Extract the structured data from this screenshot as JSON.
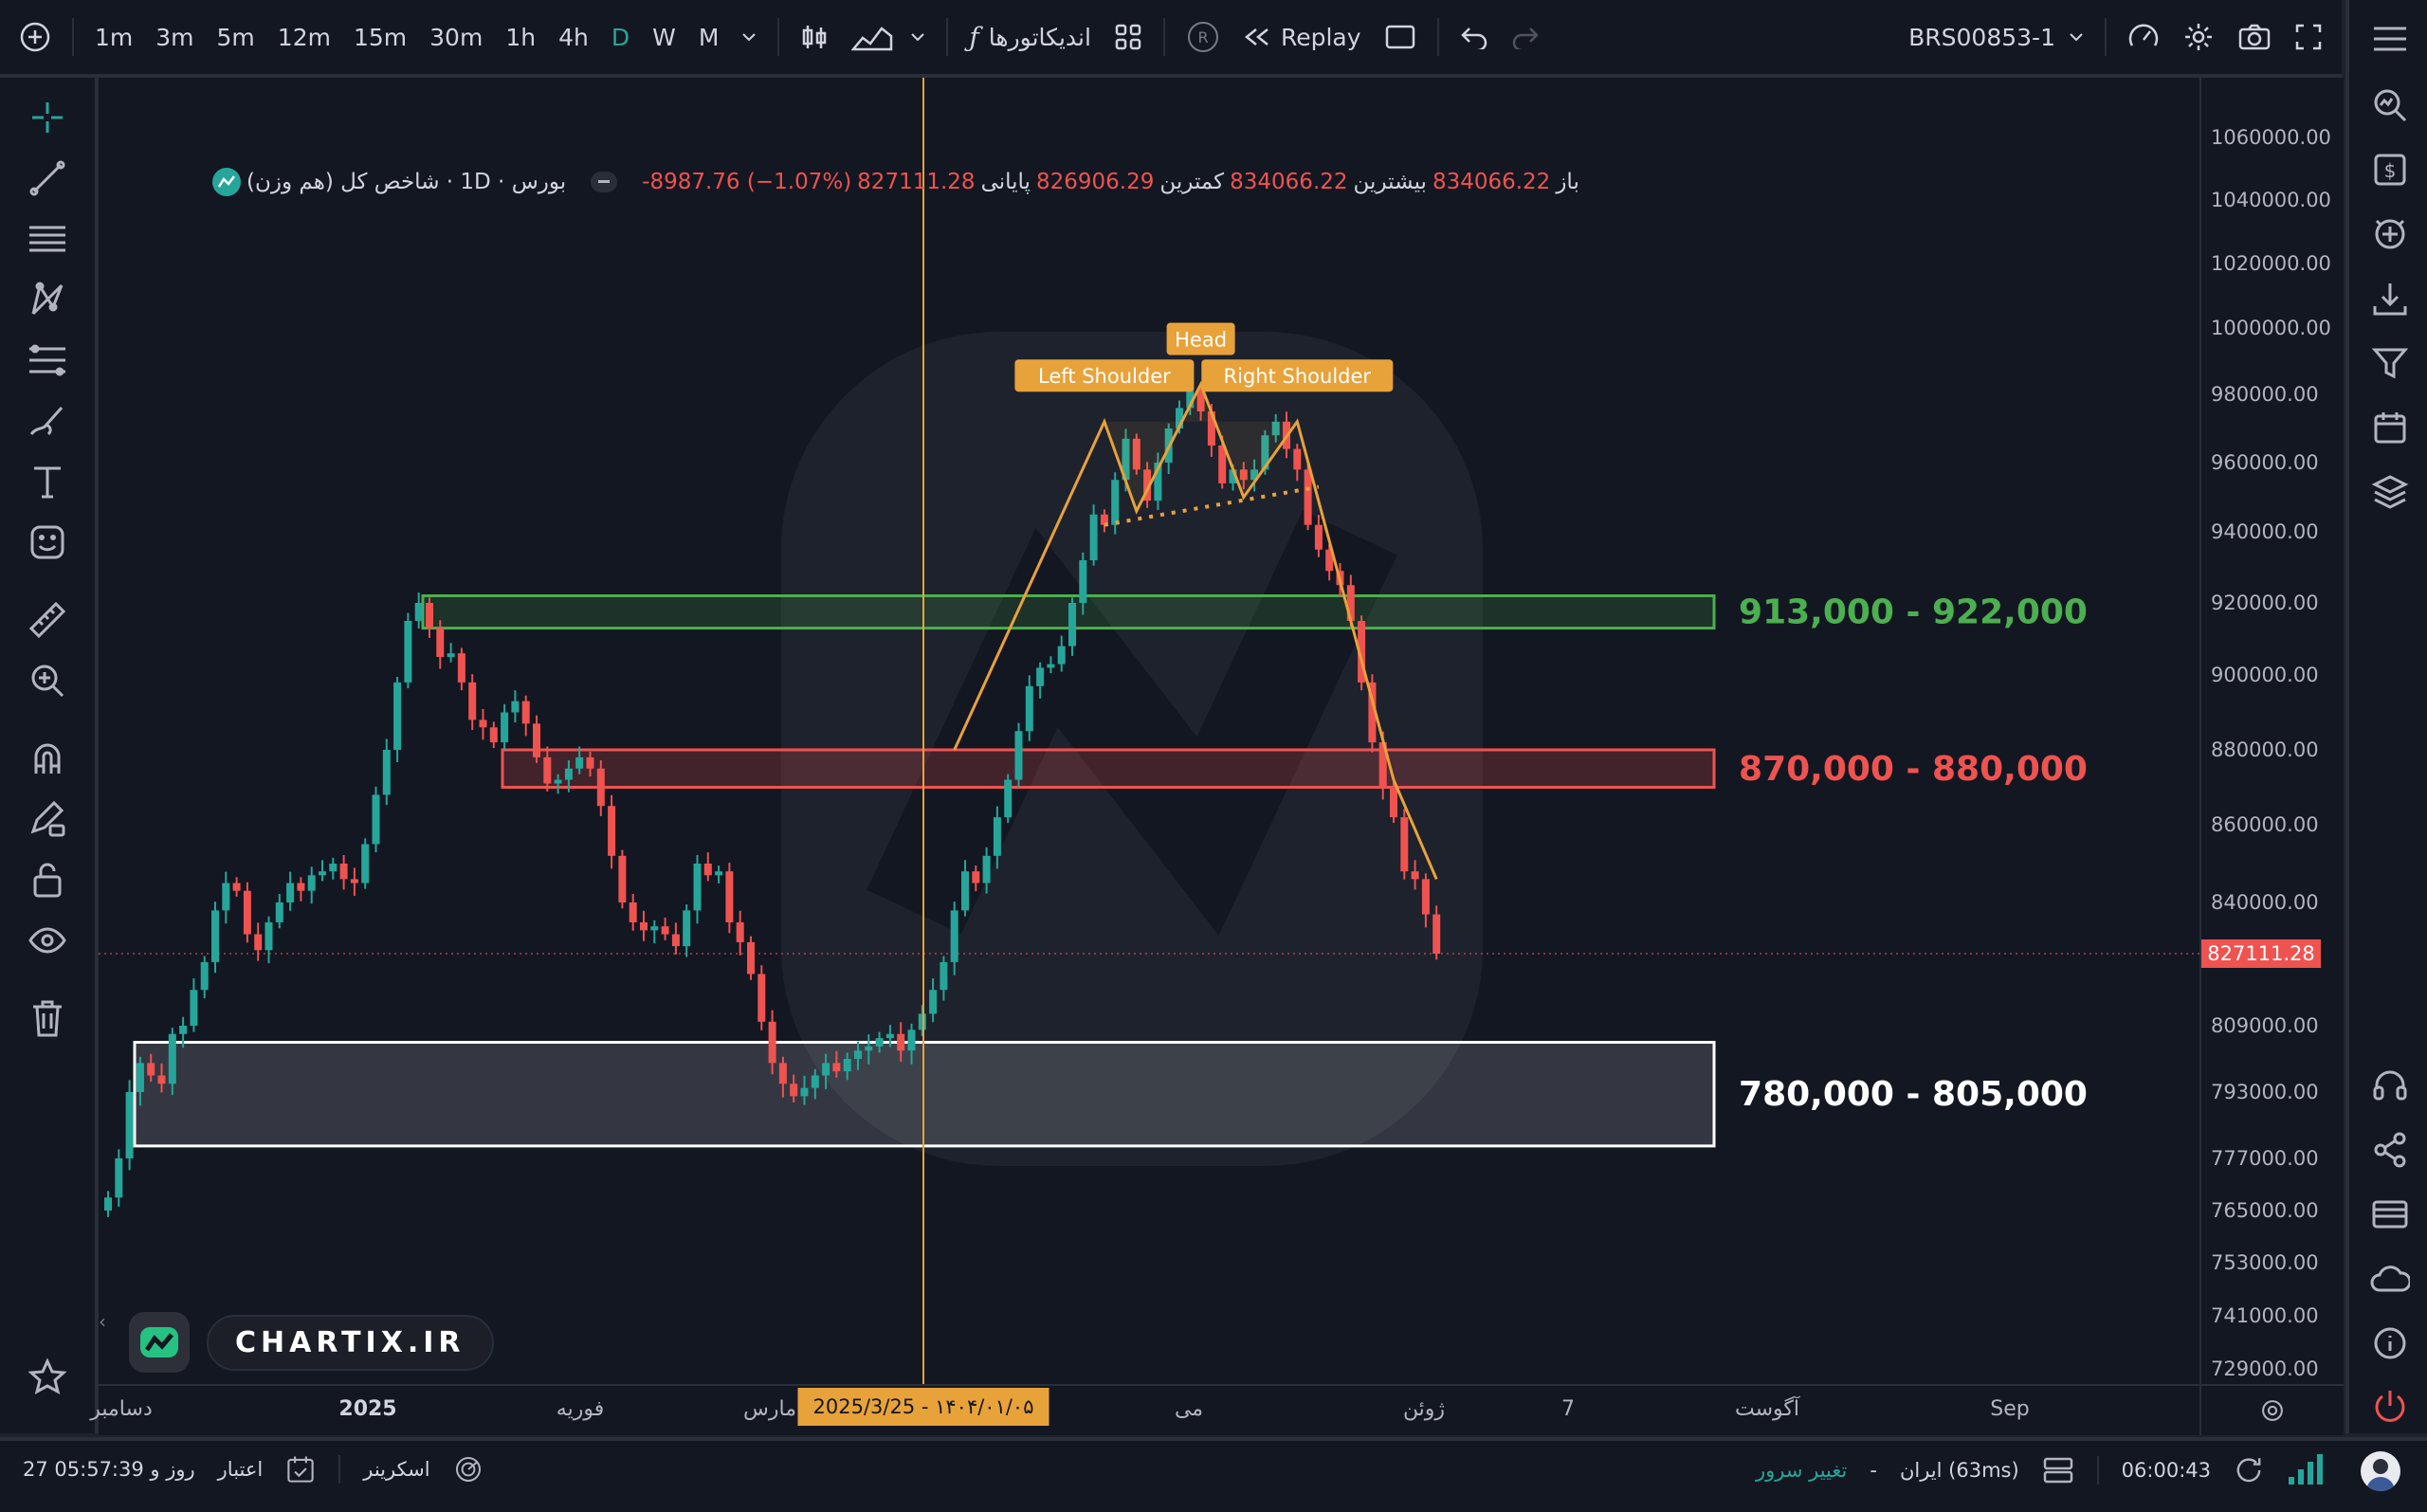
{
  "toolbar": {
    "timeframes": [
      "1m",
      "3m",
      "5m",
      "12m",
      "15m",
      "30m",
      "1h",
      "4h",
      "D",
      "W",
      "M"
    ],
    "active_timeframe": "D",
    "indicators_label": "اندیکاتورها",
    "replay_label": "Replay",
    "symbol": "BRS00853-1"
  },
  "legend": {
    "name": "شاخص کل (هم وزن)",
    "interval": "1D",
    "exchange": "بورس",
    "open_label": "باز",
    "open_value": "834066.22",
    "high_label": "بیشترین",
    "high_value": "834066.22",
    "low_label": "کمترین",
    "low_value": "826906.29",
    "close_label": "پایانی",
    "close_value": "827111.28",
    "change_value": "-8987.76 (−1.07%)"
  },
  "watermark_text": "CHARTIX.IR",
  "crosshair_date": "2025/3/25 - ۱۴۰۴/۰۱/۰۵",
  "last_price_label": "827111.28",
  "status": {
    "credit_label": "اعتبار",
    "credit_value": "27 روز و 05:57:39",
    "screener_label": "اسکرینر",
    "server_change_label": "تغییر سرور",
    "server": "ایران (63ms)",
    "clock": "06:00:43"
  },
  "colors": {
    "up": "#26a69a",
    "down": "#ef5350",
    "pattern": "#e8a23a",
    "support": "#ffffff",
    "resistance": "#ef5350",
    "green_zone": "#4caf50"
  },
  "chart_data": {
    "type": "candlestick",
    "title": "",
    "xlabel": "",
    "ylabel": "",
    "y_ticks": [
      1060000,
      1040000,
      1020000,
      1000000,
      980000,
      960000,
      940000,
      920000,
      900000,
      880000,
      860000,
      840000,
      809000,
      793000,
      777000,
      765000,
      753000,
      741000,
      729000
    ],
    "y_tick_labels": [
      "1060000.00",
      "1040000.00",
      "1020000.00",
      "1000000.00",
      "980000.00",
      "960000.00",
      "940000.00",
      "920000.00",
      "900000.00",
      "880000.00",
      "860000.00",
      "840000.00",
      "809000.00",
      "793000.00",
      "777000.00",
      "765000.00",
      "753000.00",
      "741000.00",
      "729000.00"
    ],
    "x_ticks": [
      {
        "label": "دسامبر",
        "bold": false
      },
      {
        "label": "2025",
        "bold": true
      },
      {
        "label": "فوریه",
        "bold": false
      },
      {
        "label": "مارس",
        "bold": false
      },
      {
        "label": "می",
        "bold": false
      },
      {
        "label": "ژوئن",
        "bold": false
      },
      {
        "label": "7",
        "bold": false
      },
      {
        "label": "آگوست",
        "bold": false
      },
      {
        "label": "Sep",
        "bold": false
      }
    ],
    "last_price": 827111.28,
    "closes": [
      768000,
      777000,
      793000,
      800000,
      797000,
      795000,
      807000,
      809000,
      818000,
      825000,
      838000,
      845000,
      843000,
      832000,
      828000,
      835000,
      840000,
      845000,
      843000,
      847000,
      848000,
      850000,
      846000,
      845000,
      855000,
      868000,
      880000,
      898000,
      915000,
      920000,
      913000,
      905000,
      906000,
      898000,
      888000,
      886000,
      882000,
      890000,
      893000,
      887000,
      878000,
      871000,
      872000,
      875000,
      878000,
      875000,
      865000,
      852000,
      840000,
      835000,
      833000,
      834000,
      832000,
      829000,
      838000,
      850000,
      847000,
      848000,
      835000,
      830000,
      822000,
      810000,
      800000,
      795000,
      792000,
      794000,
      797000,
      800000,
      798000,
      801000,
      803000,
      804000,
      806000,
      807000,
      803000,
      808000,
      812000,
      818000,
      825000,
      838000,
      848000,
      845000,
      852000,
      862000,
      872000,
      885000,
      897000,
      902000,
      903000,
      908000,
      920000,
      932000,
      945000,
      942000,
      955000,
      967000,
      958000,
      949000,
      960000,
      970000,
      976000,
      982000,
      975000,
      965000,
      954000,
      958000,
      955000,
      958000,
      968000,
      972000,
      964000,
      958000,
      942000,
      935000,
      929000,
      925000,
      915000,
      898000,
      882000,
      870000,
      862000,
      848000,
      846000,
      837000,
      827111
    ],
    "zones": [
      {
        "label": "913,000 - 922,000",
        "low": 913000,
        "high": 922000,
        "kind": "green"
      },
      {
        "label": "870,000 - 880,000",
        "low": 870000,
        "high": 880000,
        "kind": "red"
      },
      {
        "label": "780,000 - 805,000",
        "low": 780000,
        "high": 805000,
        "kind": "white"
      }
    ],
    "pattern": {
      "labels": [
        "Left Shoulder",
        "Head",
        "Right Shoulder"
      ],
      "points": [
        [
          79,
          880000
        ],
        [
          93,
          972000
        ],
        [
          96,
          946000
        ],
        [
          102,
          983000
        ],
        [
          106,
          950000
        ],
        [
          111,
          972000
        ],
        [
          120,
          872000
        ],
        [
          124,
          846000
        ]
      ],
      "neckline": [
        [
          93,
          942000
        ],
        [
          113,
          953000
        ]
      ]
    }
  }
}
